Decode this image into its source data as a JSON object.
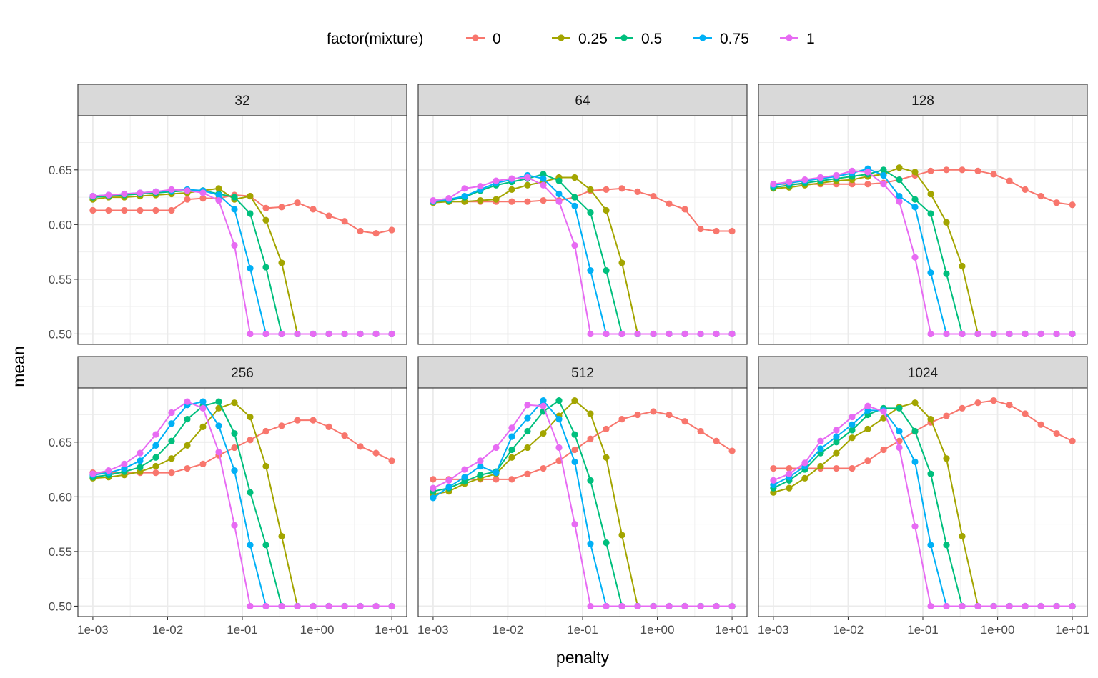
{
  "chart_data": {
    "type": "line",
    "xlabel": "penalty",
    "ylabel": "mean",
    "x_scale": "log10",
    "xlim": [
      0.001,
      10
    ],
    "ylim": [
      0.5,
      0.69
    ],
    "x_ticks": [
      "1e-03",
      "1e-02",
      "1e-01",
      "1e+00",
      "1e+01"
    ],
    "y_ticks": [
      "0.50",
      "0.55",
      "0.60",
      "0.65"
    ],
    "legend": {
      "title": "factor(mixture)",
      "position": "top",
      "entries": [
        "0",
        "0.25",
        "0.5",
        "0.75",
        "1"
      ]
    },
    "colors": {
      "0": "#F8766D",
      "0.25": "#A3A500",
      "0.5": "#00BF7D",
      "0.75": "#00B0F6",
      "1": "#E76BF3"
    },
    "x": [
      0.001,
      0.001624,
      0.002637,
      0.004281,
      0.006952,
      0.01129,
      0.01833,
      0.02976,
      0.04833,
      0.07848,
      0.1274,
      0.2069,
      0.336,
      0.5456,
      0.8859,
      1.438,
      2.336,
      3.793,
      6.158,
      10
    ],
    "panels": [
      {
        "label": "32",
        "series": [
          {
            "name": "0",
            "values": [
              0.613,
              0.613,
              0.613,
              0.613,
              0.613,
              0.613,
              0.623,
              0.624,
              0.624,
              0.627,
              0.626,
              0.615,
              0.616,
              0.62,
              0.614,
              0.608,
              0.603,
              0.594,
              0.592,
              0.595
            ]
          },
          {
            "name": "0.25",
            "values": [
              0.623,
              0.625,
              0.625,
              0.626,
              0.627,
              0.628,
              0.629,
              0.631,
              0.633,
              0.623,
              0.626,
              0.604,
              0.565,
              0.5,
              0.5,
              0.5,
              0.5,
              0.5,
              0.5,
              0.5
            ]
          },
          {
            "name": "0.5",
            "values": [
              0.625,
              0.626,
              0.627,
              0.628,
              0.629,
              0.63,
              0.631,
              0.631,
              0.628,
              0.625,
              0.61,
              0.561,
              0.5,
              0.5,
              0.5,
              0.5,
              0.5,
              0.5,
              0.5,
              0.5
            ]
          },
          {
            "name": "0.75",
            "values": [
              0.626,
              0.627,
              0.628,
              0.629,
              0.63,
              0.631,
              0.632,
              0.631,
              0.627,
              0.614,
              0.56,
              0.5,
              0.5,
              0.5,
              0.5,
              0.5,
              0.5,
              0.5,
              0.5,
              0.5
            ]
          },
          {
            "name": "1",
            "values": [
              0.626,
              0.627,
              0.628,
              0.629,
              0.63,
              0.632,
              0.631,
              0.629,
              0.622,
              0.581,
              0.5,
              0.5,
              0.5,
              0.5,
              0.5,
              0.5,
              0.5,
              0.5,
              0.5,
              0.5
            ]
          }
        ]
      },
      {
        "label": "64",
        "series": [
          {
            "name": "0",
            "values": [
              0.621,
              0.621,
              0.621,
              0.621,
              0.621,
              0.621,
              0.621,
              0.622,
              0.622,
              0.625,
              0.631,
              0.632,
              0.633,
              0.63,
              0.626,
              0.619,
              0.614,
              0.596,
              0.594,
              0.594
            ]
          },
          {
            "name": "0.25",
            "values": [
              0.62,
              0.621,
              0.621,
              0.622,
              0.623,
              0.632,
              0.636,
              0.639,
              0.643,
              0.643,
              0.632,
              0.613,
              0.565,
              0.5,
              0.5,
              0.5,
              0.5,
              0.5,
              0.5,
              0.5
            ]
          },
          {
            "name": "0.5",
            "values": [
              0.621,
              0.622,
              0.625,
              0.631,
              0.636,
              0.639,
              0.642,
              0.646,
              0.64,
              0.625,
              0.611,
              0.558,
              0.5,
              0.5,
              0.5,
              0.5,
              0.5,
              0.5,
              0.5,
              0.5
            ]
          },
          {
            "name": "0.75",
            "values": [
              0.621,
              0.623,
              0.626,
              0.632,
              0.638,
              0.641,
              0.645,
              0.642,
              0.628,
              0.617,
              0.558,
              0.5,
              0.5,
              0.5,
              0.5,
              0.5,
              0.5,
              0.5,
              0.5,
              0.5
            ]
          },
          {
            "name": "1",
            "values": [
              0.622,
              0.624,
              0.633,
              0.635,
              0.64,
              0.642,
              0.643,
              0.636,
              0.621,
              0.581,
              0.5,
              0.5,
              0.5,
              0.5,
              0.5,
              0.5,
              0.5,
              0.5,
              0.5,
              0.5
            ]
          }
        ]
      },
      {
        "label": "128",
        "series": [
          {
            "name": "0",
            "values": [
              0.637,
              0.637,
              0.637,
              0.637,
              0.637,
              0.637,
              0.637,
              0.638,
              0.641,
              0.645,
              0.649,
              0.65,
              0.65,
              0.649,
              0.646,
              0.64,
              0.632,
              0.626,
              0.62,
              0.618
            ]
          },
          {
            "name": "0.25",
            "values": [
              0.633,
              0.634,
              0.636,
              0.638,
              0.64,
              0.641,
              0.644,
              0.646,
              0.652,
              0.648,
              0.628,
              0.602,
              0.562,
              0.5,
              0.5,
              0.5,
              0.5,
              0.5,
              0.5,
              0.5
            ]
          },
          {
            "name": "0.5",
            "values": [
              0.634,
              0.636,
              0.638,
              0.64,
              0.642,
              0.644,
              0.646,
              0.65,
              0.641,
              0.623,
              0.61,
              0.555,
              0.5,
              0.5,
              0.5,
              0.5,
              0.5,
              0.5,
              0.5,
              0.5
            ]
          },
          {
            "name": "0.75",
            "values": [
              0.636,
              0.638,
              0.64,
              0.642,
              0.644,
              0.647,
              0.651,
              0.645,
              0.626,
              0.616,
              0.556,
              0.5,
              0.5,
              0.5,
              0.5,
              0.5,
              0.5,
              0.5,
              0.5,
              0.5
            ]
          },
          {
            "name": "1",
            "values": [
              0.637,
              0.639,
              0.641,
              0.643,
              0.645,
              0.649,
              0.648,
              0.637,
              0.621,
              0.57,
              0.5,
              0.5,
              0.5,
              0.5,
              0.5,
              0.5,
              0.5,
              0.5,
              0.5,
              0.5
            ]
          }
        ]
      },
      {
        "label": "256",
        "series": [
          {
            "name": "0",
            "values": [
              0.622,
              0.622,
              0.622,
              0.622,
              0.622,
              0.622,
              0.626,
              0.63,
              0.638,
              0.645,
              0.652,
              0.66,
              0.665,
              0.67,
              0.67,
              0.664,
              0.656,
              0.646,
              0.64,
              0.633
            ]
          },
          {
            "name": "0.25",
            "values": [
              0.617,
              0.618,
              0.62,
              0.623,
              0.628,
              0.635,
              0.647,
              0.664,
              0.681,
              0.686,
              0.673,
              0.628,
              0.564,
              0.5,
              0.5,
              0.5,
              0.5,
              0.5,
              0.5,
              0.5
            ]
          },
          {
            "name": "0.5",
            "values": [
              0.618,
              0.62,
              0.623,
              0.627,
              0.636,
              0.651,
              0.671,
              0.683,
              0.687,
              0.658,
              0.604,
              0.556,
              0.5,
              0.5,
              0.5,
              0.5,
              0.5,
              0.5,
              0.5,
              0.5
            ]
          },
          {
            "name": "0.75",
            "values": [
              0.62,
              0.622,
              0.626,
              0.633,
              0.647,
              0.667,
              0.684,
              0.687,
              0.665,
              0.624,
              0.556,
              0.5,
              0.5,
              0.5,
              0.5,
              0.5,
              0.5,
              0.5,
              0.5,
              0.5
            ]
          },
          {
            "name": "1",
            "values": [
              0.621,
              0.624,
              0.63,
              0.64,
              0.657,
              0.677,
              0.687,
              0.681,
              0.641,
              0.574,
              0.5,
              0.5,
              0.5,
              0.5,
              0.5,
              0.5,
              0.5,
              0.5,
              0.5,
              0.5
            ]
          }
        ]
      },
      {
        "label": "512",
        "series": [
          {
            "name": "0",
            "values": [
              0.616,
              0.616,
              0.616,
              0.616,
              0.616,
              0.616,
              0.621,
              0.626,
              0.633,
              0.643,
              0.653,
              0.662,
              0.671,
              0.675,
              0.678,
              0.675,
              0.669,
              0.66,
              0.651,
              0.642
            ]
          },
          {
            "name": "0.25",
            "values": [
              0.602,
              0.605,
              0.612,
              0.617,
              0.621,
              0.636,
              0.645,
              0.658,
              0.674,
              0.688,
              0.676,
              0.636,
              0.565,
              0.5,
              0.5,
              0.5,
              0.5,
              0.5,
              0.5,
              0.5
            ]
          },
          {
            "name": "0.5",
            "values": [
              0.605,
              0.608,
              0.614,
              0.62,
              0.623,
              0.643,
              0.66,
              0.678,
              0.688,
              0.657,
              0.615,
              0.558,
              0.5,
              0.5,
              0.5,
              0.5,
              0.5,
              0.5,
              0.5,
              0.5
            ]
          },
          {
            "name": "0.75",
            "values": [
              0.599,
              0.609,
              0.618,
              0.628,
              0.622,
              0.655,
              0.672,
              0.688,
              0.671,
              0.632,
              0.557,
              0.5,
              0.5,
              0.5,
              0.5,
              0.5,
              0.5,
              0.5,
              0.5,
              0.5
            ]
          },
          {
            "name": "1",
            "values": [
              0.608,
              0.615,
              0.625,
              0.633,
              0.645,
              0.663,
              0.684,
              0.683,
              0.645,
              0.575,
              0.5,
              0.5,
              0.5,
              0.5,
              0.5,
              0.5,
              0.5,
              0.5,
              0.5,
              0.5
            ]
          }
        ]
      },
      {
        "label": "1024",
        "series": [
          {
            "name": "0",
            "values": [
              0.626,
              0.626,
              0.626,
              0.626,
              0.626,
              0.626,
              0.633,
              0.643,
              0.651,
              0.66,
              0.668,
              0.674,
              0.681,
              0.686,
              0.688,
              0.684,
              0.676,
              0.666,
              0.658,
              0.651
            ]
          },
          {
            "name": "0.25",
            "values": [
              0.604,
              0.608,
              0.617,
              0.628,
              0.64,
              0.654,
              0.662,
              0.672,
              0.682,
              0.686,
              0.671,
              0.635,
              0.564,
              0.5,
              0.5,
              0.5,
              0.5,
              0.5,
              0.5,
              0.5
            ]
          },
          {
            "name": "0.5",
            "values": [
              0.608,
              0.615,
              0.625,
              0.64,
              0.65,
              0.661,
              0.675,
              0.681,
              0.681,
              0.66,
              0.621,
              0.556,
              0.5,
              0.5,
              0.5,
              0.5,
              0.5,
              0.5,
              0.5,
              0.5
            ]
          },
          {
            "name": "0.75",
            "values": [
              0.611,
              0.618,
              0.628,
              0.644,
              0.655,
              0.666,
              0.679,
              0.679,
              0.66,
              0.632,
              0.556,
              0.5,
              0.5,
              0.5,
              0.5,
              0.5,
              0.5,
              0.5,
              0.5,
              0.5
            ]
          },
          {
            "name": "1",
            "values": [
              0.615,
              0.621,
              0.631,
              0.651,
              0.661,
              0.673,
              0.683,
              0.678,
              0.645,
              0.573,
              0.5,
              0.5,
              0.5,
              0.5,
              0.5,
              0.5,
              0.5,
              0.5,
              0.5,
              0.5
            ]
          }
        ]
      }
    ]
  }
}
